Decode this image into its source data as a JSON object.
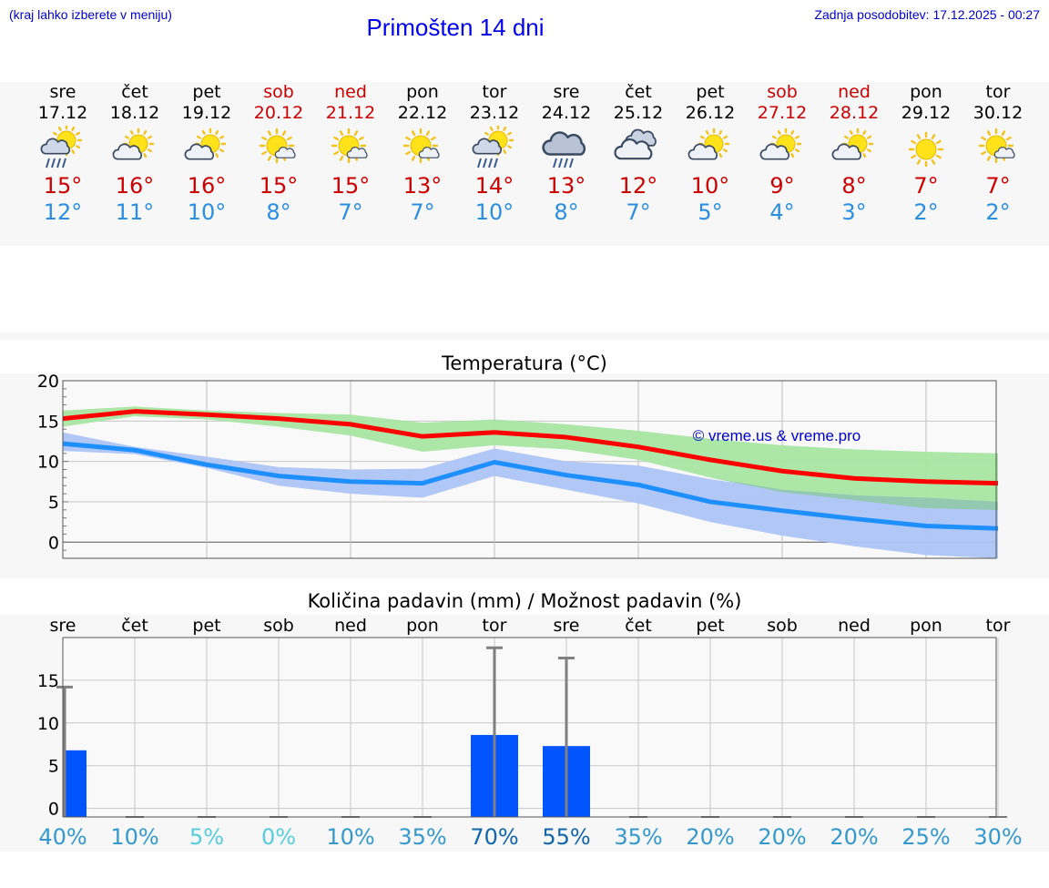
{
  "header": {
    "hint": "(kraj lahko izberete v meniju)",
    "title": "Primošten 14 dni",
    "updated": "Zadnja posodobitev: 17.12.2025 - 00:27"
  },
  "days": [
    {
      "name": "sre",
      "date": "17.12",
      "weekend": false,
      "icon": "sun-cloud-rain",
      "max": "15°",
      "min": "12°"
    },
    {
      "name": "čet",
      "date": "18.12",
      "weekend": false,
      "icon": "sun-cloud",
      "max": "16°",
      "min": "11°"
    },
    {
      "name": "pet",
      "date": "19.12",
      "weekend": false,
      "icon": "sun-cloud",
      "max": "16°",
      "min": "10°"
    },
    {
      "name": "sob",
      "date": "20.12",
      "weekend": true,
      "icon": "sun-small-cloud",
      "max": "15°",
      "min": "8°"
    },
    {
      "name": "ned",
      "date": "21.12",
      "weekend": true,
      "icon": "sun-small-cloud",
      "max": "15°",
      "min": "7°"
    },
    {
      "name": "pon",
      "date": "22.12",
      "weekend": false,
      "icon": "sun-small-cloud",
      "max": "13°",
      "min": "7°"
    },
    {
      "name": "tor",
      "date": "23.12",
      "weekend": false,
      "icon": "sun-cloud-rain",
      "max": "14°",
      "min": "10°"
    },
    {
      "name": "sre",
      "date": "24.12",
      "weekend": false,
      "icon": "cloud-rain",
      "max": "13°",
      "min": "8°"
    },
    {
      "name": "čet",
      "date": "25.12",
      "weekend": false,
      "icon": "cloudy",
      "max": "12°",
      "min": "7°"
    },
    {
      "name": "pet",
      "date": "26.12",
      "weekend": false,
      "icon": "sun-cloud",
      "max": "10°",
      "min": "5°"
    },
    {
      "name": "sob",
      "date": "27.12",
      "weekend": true,
      "icon": "sun-cloud",
      "max": "9°",
      "min": "4°"
    },
    {
      "name": "ned",
      "date": "28.12",
      "weekend": true,
      "icon": "sun-cloud",
      "max": "8°",
      "min": "3°"
    },
    {
      "name": "pon",
      "date": "29.12",
      "weekend": false,
      "icon": "sun",
      "max": "7°",
      "min": "2°"
    },
    {
      "name": "tor",
      "date": "30.12",
      "weekend": false,
      "icon": "sun-small-cloud",
      "max": "7°",
      "min": "2°"
    }
  ],
  "colors": {
    "max_line": "#ff0000",
    "min_line": "#1e8fff",
    "max_band": "#a8e6a3",
    "min_band": "#adc4f5",
    "overlap_band": "#8fc9a8",
    "bar": "#0055ff",
    "errbar": "#808080",
    "watermark": "#0000cc"
  },
  "chart_data": [
    {
      "type": "line",
      "title": "Temperatura (°C)",
      "watermark": "© vreme.us & vreme.pro",
      "ylim": [
        -2,
        20
      ],
      "yticks": [
        0,
        5,
        10,
        15,
        20
      ],
      "x": [
        0,
        1,
        2,
        3,
        4,
        5,
        6,
        7,
        8,
        9,
        10,
        11,
        12,
        13
      ],
      "series": [
        {
          "name": "max",
          "values": [
            15.3,
            16.2,
            15.8,
            15.3,
            14.6,
            13.1,
            13.6,
            13.0,
            11.8,
            10.2,
            8.8,
            7.9,
            7.5,
            7.3
          ],
          "band_low": [
            14.3,
            15.6,
            15.2,
            14.3,
            13.2,
            11.2,
            12.0,
            11.5,
            10.2,
            8.0,
            6.2,
            5.2,
            4.2,
            4.0
          ],
          "band_high": [
            16.3,
            16.8,
            16.3,
            16.0,
            15.8,
            14.8,
            15.2,
            14.6,
            13.8,
            12.8,
            12.0,
            11.5,
            11.2,
            11.0
          ]
        },
        {
          "name": "min",
          "values": [
            12.2,
            11.4,
            9.6,
            8.2,
            7.5,
            7.3,
            9.9,
            8.3,
            7.1,
            5.0,
            3.9,
            2.9,
            2.0,
            1.7
          ],
          "band_low": [
            11.3,
            10.9,
            9.2,
            7.0,
            6.0,
            5.5,
            8.2,
            6.5,
            4.8,
            2.5,
            0.8,
            -0.5,
            -1.6,
            -2.0
          ],
          "band_high": [
            13.6,
            11.8,
            10.6,
            9.3,
            9.0,
            9.1,
            11.6,
            10.0,
            9.5,
            7.8,
            6.5,
            5.8,
            5.5,
            5.0
          ]
        }
      ]
    },
    {
      "type": "bar",
      "title": "Količina padavin (mm) / Možnost padavin (%)",
      "categories": [
        "sre",
        "čet",
        "pet",
        "sob",
        "ned",
        "pon",
        "tor",
        "sre",
        "čet",
        "pet",
        "sob",
        "ned",
        "pon",
        "tor"
      ],
      "ylim": [
        -1,
        20
      ],
      "yticks": [
        0,
        5,
        10,
        15
      ],
      "values": [
        6.8,
        0,
        0,
        0,
        0,
        0,
        8.6,
        7.3,
        0,
        0,
        0,
        0,
        0,
        0
      ],
      "error_high": [
        14.2,
        0,
        0,
        0,
        0,
        0,
        18.8,
        17.6,
        0,
        0,
        0,
        0,
        0,
        0
      ],
      "probability": [
        "40%",
        "10%",
        "5%",
        "0%",
        "10%",
        "35%",
        "70%",
        "55%",
        "35%",
        "20%",
        "20%",
        "20%",
        "25%",
        "30%"
      ],
      "probability_colors": [
        "#3399cc",
        "#3399cc",
        "#55ccdd",
        "#55ccdd",
        "#3399cc",
        "#3399cc",
        "#1166aa",
        "#1166aa",
        "#3399cc",
        "#3399cc",
        "#3399cc",
        "#3399cc",
        "#3399cc",
        "#3399cc"
      ]
    }
  ]
}
